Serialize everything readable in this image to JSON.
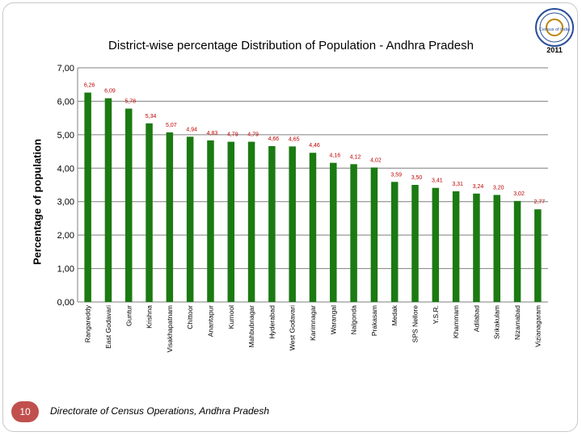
{
  "slide": {
    "page_number": "10",
    "footer": "Directorate of Census Operations, Andhra Pradesh",
    "logo_text": "Census of India",
    "logo_year": "2011"
  },
  "colors": {
    "bar": "#1b7a12",
    "label": "#c00000",
    "grid": "#7f7f7f"
  },
  "chart_data": {
    "type": "bar",
    "title": "District-wise percentage Distribution of Population  - Andhra Pradesh",
    "xlabel": "",
    "ylabel": "Percentage of population",
    "ylim": [
      0,
      7
    ],
    "yticks": [
      "0,00",
      "1,00",
      "2,00",
      "3,00",
      "4,00",
      "5,00",
      "6,00",
      "7,00"
    ],
    "grid": true,
    "categories": [
      "Rangareddy",
      "East Godavari",
      "Guntur",
      "Krishna",
      "Visakhapatnam",
      "Chittoor",
      "Anantapur",
      "Kurnool",
      "Mahbubnagar",
      "Hyderabad",
      "West Godavari",
      "Karimnagar",
      "Warangal",
      "Nalgonda",
      "Prakasam",
      "Medak",
      "SPS Nellore",
      "Y.S.R.",
      "Khammam",
      "Adilabad",
      "Srikakulam",
      "Nizamabad",
      "Vizianagaram"
    ],
    "values": [
      6.26,
      6.09,
      5.78,
      5.34,
      5.07,
      4.94,
      4.83,
      4.79,
      4.79,
      4.66,
      4.65,
      4.46,
      4.16,
      4.12,
      4.02,
      3.59,
      3.5,
      3.41,
      3.31,
      3.24,
      3.2,
      3.02,
      2.77
    ],
    "value_labels": [
      "6,26",
      "6,09",
      "5,78",
      "5,34",
      "5,07",
      "4,94",
      "4,83",
      "4,79",
      "4,79",
      "4,66",
      "4,65",
      "4,46",
      "4,16",
      "4,12",
      "4,02",
      "3,59",
      "3,50",
      "3,41",
      "3,31",
      "3,24",
      "3,20",
      "3,02",
      "2,77"
    ]
  }
}
